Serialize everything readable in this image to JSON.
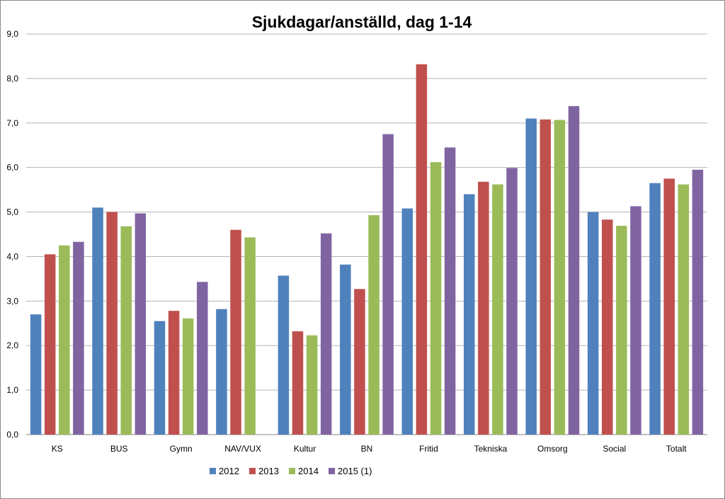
{
  "chart_data": {
    "type": "bar",
    "title": "Sjukdagar/anställd, dag 1-14",
    "xlabel": "",
    "ylabel": "",
    "ylim": [
      0,
      9
    ],
    "yticks": [
      "0,0",
      "1,0",
      "2,0",
      "3,0",
      "4,0",
      "5,0",
      "6,0",
      "7,0",
      "8,0",
      "9,0"
    ],
    "grid": true,
    "legend_position": "bottom",
    "categories": [
      "KS",
      "BUS",
      "Gymn",
      "NAV/VUX",
      "Kultur",
      "BN",
      "Fritid",
      "Tekniska",
      "Omsorg",
      "Social",
      "Totalt"
    ],
    "series": [
      {
        "name": "2012",
        "color": "#4F81BD",
        "values": [
          2.7,
          5.1,
          2.55,
          2.82,
          3.57,
          3.82,
          5.08,
          5.4,
          7.1,
          5.0,
          5.65
        ]
      },
      {
        "name": "2013",
        "color": "#C0504D",
        "values": [
          4.05,
          5.0,
          2.78,
          4.6,
          2.32,
          3.27,
          8.32,
          5.68,
          7.08,
          4.83,
          5.75
        ]
      },
      {
        "name": "2014",
        "color": "#9BBB59",
        "values": [
          4.25,
          4.68,
          2.61,
          4.43,
          2.23,
          4.93,
          6.12,
          5.62,
          7.07,
          4.69,
          5.62
        ]
      },
      {
        "name": "2015 (1)",
        "color": "#8064A2",
        "values": [
          4.33,
          4.97,
          3.43,
          null,
          4.52,
          6.75,
          6.45,
          5.99,
          7.38,
          5.13,
          5.95
        ]
      }
    ]
  }
}
